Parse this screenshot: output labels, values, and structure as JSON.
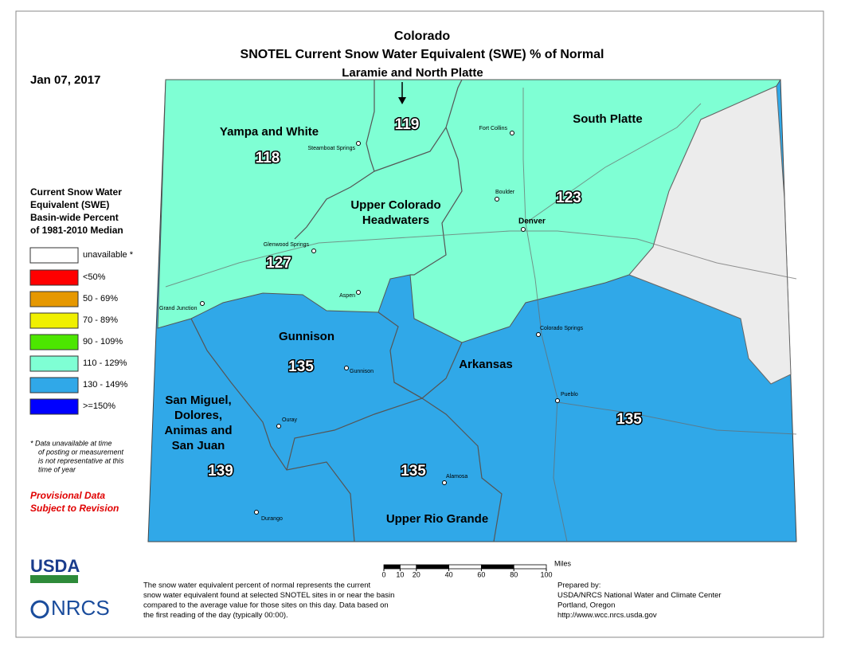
{
  "title": "Colorado",
  "subtitle": "SNOTEL Current Snow Water Equivalent (SWE) % of Normal",
  "date": "Jan 07, 2017",
  "legend": {
    "title_lines": [
      "Current Snow Water",
      "Equivalent (SWE)",
      "Basin-wide Percent",
      "of 1981-2010 Median"
    ],
    "items": [
      {
        "label": "unavailable *",
        "color": "#ffffff"
      },
      {
        "label": "<50%",
        "color": "#ff0000"
      },
      {
        "label": "50 - 69%",
        "color": "#e69800"
      },
      {
        "label": "70 - 89%",
        "color": "#f0f000"
      },
      {
        "label": "90 - 109%",
        "color": "#4ce600"
      },
      {
        "label": "110 - 129%",
        "color": "#7fffd4"
      },
      {
        "label": "130 - 149%",
        "color": "#30a8e8"
      },
      {
        "label": ">=150%",
        "color": "#0000ff"
      }
    ]
  },
  "footnote": [
    "*  Data unavailable at time",
    "of posting or measurement",
    "is not representative at this",
    "time of year"
  ],
  "provisional": [
    "Provisional Data",
    "Subject to Revision"
  ],
  "basins": [
    {
      "name_lines": [
        "Yampa and White"
      ],
      "value": 118
    },
    {
      "name_lines": [
        "Laramie and North Platte"
      ],
      "value": 119
    },
    {
      "name_lines": [
        "South Platte"
      ],
      "value": 123
    },
    {
      "name_lines": [
        "Upper Colorado",
        "Headwaters"
      ],
      "value": 127
    },
    {
      "name_lines": [
        "Gunnison"
      ],
      "value": 135
    },
    {
      "name_lines": [
        "Arkansas"
      ],
      "value": 135
    },
    {
      "name_lines": [
        "San Miguel,",
        "Dolores,",
        "Animas and",
        "San Juan"
      ],
      "value": 139
    },
    {
      "name_lines": [
        "Upper Rio Grande"
      ],
      "value": 135
    }
  ],
  "cities": [
    "Fort Collins",
    "Steamboat Springs",
    "Boulder",
    "Denver",
    "Glenwood Springs",
    "Aspen",
    "Grand Junction",
    "Colorado Springs",
    "Gunnison",
    "Pueblo",
    "Ouray",
    "Alamosa",
    "Durango"
  ],
  "scale": {
    "ticks": [
      0,
      10,
      20,
      40,
      60,
      80,
      100
    ],
    "unit": "Miles"
  },
  "description": [
    "The snow water equivalent percent of normal represents the current",
    "snow water equivalent found at selected SNOTEL sites in or near the basin",
    "compared to the average value for those sites on this day. Data based on",
    "the first reading of the day (typically 00:00)."
  ],
  "prepared": [
    "Prepared by:",
    "USDA/NRCS National Water and Climate Center",
    "Portland, Oregon",
    "http://www.wcc.nrcs.usda.gov"
  ],
  "logos": [
    "USDA",
    "NRCS"
  ]
}
